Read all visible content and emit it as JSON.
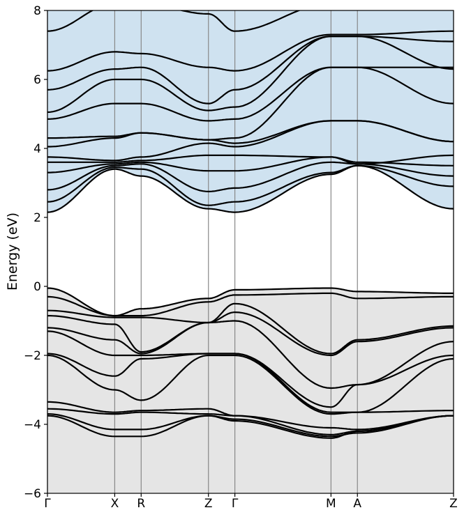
{
  "chart_data": {
    "type": "line",
    "title": "",
    "xlabel": "",
    "ylabel": "Energy  (eV)",
    "ylim": [
      -6,
      8
    ],
    "yticks": [
      -6,
      -4,
      -2,
      0,
      2,
      4,
      6,
      8
    ],
    "ytick_labels": [
      "−6",
      "−4",
      "−2",
      "0",
      "2",
      "4",
      "6",
      "8"
    ],
    "kpath_positions": [
      0,
      0.28,
      0.39,
      0.67,
      0.78,
      1.18,
      1.29,
      1.69
    ],
    "kpath_labels": [
      "Γ",
      "X",
      "R",
      "Z",
      "Γ",
      "M",
      "A",
      "Z"
    ],
    "valence_color": "#e5e5e5",
    "conduction_color": "#cfe2f0",
    "band_color": "#000000",
    "valence_top": [
      -0.05,
      -0.85,
      -0.65,
      -0.35,
      -0.1,
      -0.05,
      -0.15,
      -0.2
    ],
    "valence_bottom": -6,
    "conduction_bottom": [
      2.15,
      3.4,
      3.2,
      2.25,
      2.15,
      3.25,
      3.5,
      2.25
    ],
    "conduction_top": 8,
    "valence_bands": [
      [
        -0.05,
        -0.85,
        -0.65,
        -0.35,
        -0.1,
        -0.05,
        -0.15,
        -0.2
      ],
      [
        -0.3,
        -0.85,
        -0.85,
        -0.45,
        -0.25,
        -0.2,
        -0.35,
        -0.3
      ],
      [
        -0.7,
        -0.9,
        -0.9,
        -1.05,
        -0.5,
        -1.95,
        -1.55,
        -1.15
      ],
      [
        -0.85,
        -1.1,
        -1.9,
        -1.05,
        -0.75,
        -2.0,
        -1.6,
        -1.2
      ],
      [
        -1.2,
        -1.55,
        -1.95,
        -1.05,
        -1.0,
        -2.95,
        -2.85,
        -1.6
      ],
      [
        -1.3,
        -2.0,
        -2.0,
        -1.95,
        -1.95,
        -3.5,
        -2.85,
        -2.0
      ],
      [
        -1.95,
        -2.6,
        -2.1,
        -1.95,
        -1.95,
        -3.65,
        -3.65,
        -2.1
      ],
      [
        -2.0,
        -3.0,
        -3.3,
        -2.0,
        -2.0,
        -3.7,
        -3.65,
        -3.6
      ],
      [
        -3.35,
        -3.65,
        -3.6,
        -3.55,
        -3.75,
        -4.1,
        -4.15,
        -3.75
      ],
      [
        -3.55,
        -3.7,
        -3.65,
        -3.7,
        -3.75,
        -4.3,
        -4.2,
        -3.75
      ],
      [
        -3.7,
        -4.15,
        -4.15,
        -3.75,
        -3.85,
        -4.35,
        -4.25,
        -3.75
      ],
      [
        -3.75,
        -4.35,
        -4.35,
        -3.75,
        -3.9,
        -4.4,
        -4.2,
        -3.75
      ]
    ],
    "conduction_bands": [
      [
        2.15,
        3.4,
        3.2,
        2.25,
        2.15,
        3.25,
        3.5,
        2.25
      ],
      [
        2.45,
        3.45,
        3.4,
        2.35,
        2.45,
        3.3,
        3.5,
        2.9
      ],
      [
        2.8,
        3.5,
        3.55,
        2.75,
        2.85,
        3.6,
        3.55,
        3.2
      ],
      [
        3.3,
        3.55,
        3.6,
        3.35,
        3.35,
        3.75,
        3.6,
        3.5
      ],
      [
        3.6,
        3.6,
        3.65,
        3.8,
        3.8,
        3.75,
        3.55,
        3.8
      ],
      [
        3.75,
        3.65,
        3.75,
        4.15,
        4.05,
        4.8,
        4.8,
        4.2
      ],
      [
        4.05,
        4.3,
        4.45,
        4.25,
        4.15,
        4.8,
        4.8,
        4.2
      ],
      [
        4.3,
        4.35,
        4.45,
        4.25,
        4.3,
        6.35,
        6.35,
        5.3
      ],
      [
        4.85,
        5.3,
        5.3,
        4.8,
        4.85,
        6.35,
        6.35,
        6.35
      ],
      [
        5.05,
        6.0,
        6.0,
        5.1,
        5.2,
        7.25,
        7.25,
        6.3
      ],
      [
        5.7,
        6.3,
        6.35,
        5.3,
        5.7,
        7.25,
        7.25,
        7.1
      ],
      [
        6.25,
        6.8,
        6.75,
        6.35,
        6.25,
        7.3,
        7.3,
        7.4
      ],
      [
        7.4,
        8.2,
        8.2,
        7.9,
        7.4,
        8.2,
        8.2,
        8.2
      ]
    ]
  }
}
